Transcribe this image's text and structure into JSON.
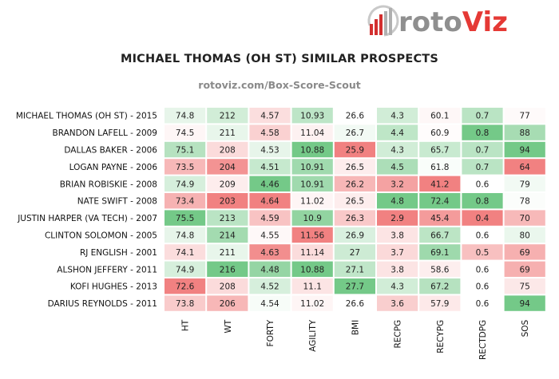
{
  "brand": {
    "name_left": "roto",
    "name_right": "Viz"
  },
  "title": "MICHAEL THOMAS (OH ST) SIMILAR PROSPECTS",
  "subtitle": "rotoviz.com/Box-Score-Scout",
  "chart_data": {
    "type": "heatmap",
    "title": "MICHAEL THOMAS (OH ST) SIMILAR PROSPECTS",
    "columns": [
      "HT",
      "WT",
      "FORTY",
      "AGILITY",
      "BMI",
      "RECPG",
      "RECYPG",
      "RECTDPG",
      "SOS"
    ],
    "rows": [
      {
        "label": "MICHAEL THOMAS (OH ST) - 2015",
        "values": [
          "74.8",
          "212",
          "4.57",
          "10.93",
          "26.6",
          "4.3",
          "60.1",
          "0.7",
          "77"
        ]
      },
      {
        "label": "BRANDON LAFELL - 2009",
        "values": [
          "74.5",
          "211",
          "4.58",
          "11.04",
          "26.7",
          "4.4",
          "60.9",
          "0.8",
          "88"
        ]
      },
      {
        "label": "DALLAS BAKER - 2006",
        "values": [
          "75.1",
          "208",
          "4.53",
          "10.88",
          "25.9",
          "4.3",
          "65.7",
          "0.7",
          "94"
        ]
      },
      {
        "label": "LOGAN PAYNE - 2006",
        "values": [
          "73.5",
          "204",
          "4.51",
          "10.91",
          "26.5",
          "4.5",
          "61.8",
          "0.7",
          "64"
        ]
      },
      {
        "label": "BRIAN ROBISKIE - 2008",
        "values": [
          "74.9",
          "209",
          "4.46",
          "10.91",
          "26.2",
          "3.2",
          "41.2",
          "0.6",
          "79"
        ]
      },
      {
        "label": "NATE SWIFT - 2008",
        "values": [
          "73.4",
          "203",
          "4.64",
          "11.02",
          "26.5",
          "4.8",
          "72.4",
          "0.8",
          "78"
        ]
      },
      {
        "label": "JUSTIN HARPER (VA TECH) - 2007",
        "values": [
          "75.5",
          "213",
          "4.59",
          "10.9",
          "26.3",
          "2.9",
          "45.4",
          "0.4",
          "70"
        ]
      },
      {
        "label": "CLINTON SOLOMON - 2005",
        "values": [
          "74.8",
          "214",
          "4.55",
          "11.56",
          "26.9",
          "3.8",
          "66.7",
          "0.6",
          "80"
        ]
      },
      {
        "label": "RJ ENGLISH - 2001",
        "values": [
          "74.1",
          "211",
          "4.63",
          "11.14",
          "27",
          "3.7",
          "69.1",
          "0.5",
          "69"
        ]
      },
      {
        "label": "ALSHON JEFFERY - 2011",
        "values": [
          "74.9",
          "216",
          "4.48",
          "10.88",
          "27.1",
          "3.8",
          "58.6",
          "0.6",
          "69"
        ]
      },
      {
        "label": "KOFI HUGHES - 2013",
        "values": [
          "72.6",
          "208",
          "4.52",
          "11.1",
          "27.7",
          "4.3",
          "67.2",
          "0.6",
          "75"
        ]
      },
      {
        "label": "DARIUS REYNOLDS - 2011",
        "values": [
          "73.8",
          "206",
          "4.54",
          "11.02",
          "26.6",
          "3.6",
          "57.9",
          "0.6",
          "94"
        ]
      }
    ],
    "color_scale": {
      "good": "#5cbf73",
      "bad": "#ee6b6b",
      "neutral": "#ffffff"
    },
    "lower_is_better": [
      "FORTY",
      "AGILITY"
    ]
  }
}
